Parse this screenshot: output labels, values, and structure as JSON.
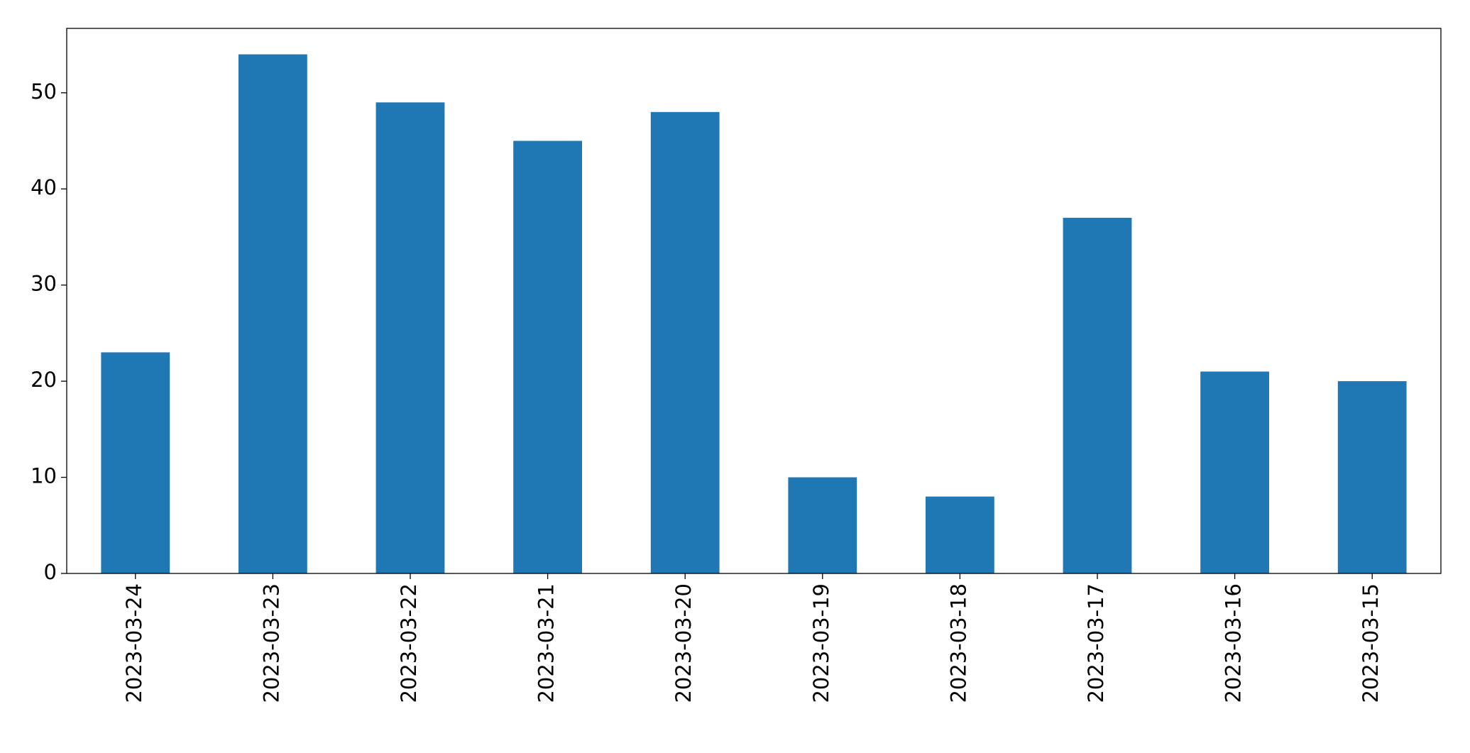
{
  "chart_data": {
    "type": "bar",
    "categories": [
      "2023-03-24",
      "2023-03-23",
      "2023-03-22",
      "2023-03-21",
      "2023-03-20",
      "2023-03-19",
      "2023-03-18",
      "2023-03-17",
      "2023-03-16",
      "2023-03-15"
    ],
    "values": [
      23,
      54,
      49,
      45,
      48,
      10,
      8,
      37,
      21,
      20
    ],
    "color": "#1f77b4",
    "ylim": [
      0,
      56.7
    ],
    "yticks": [
      0,
      10,
      20,
      30,
      40,
      50
    ],
    "grid": false
  }
}
